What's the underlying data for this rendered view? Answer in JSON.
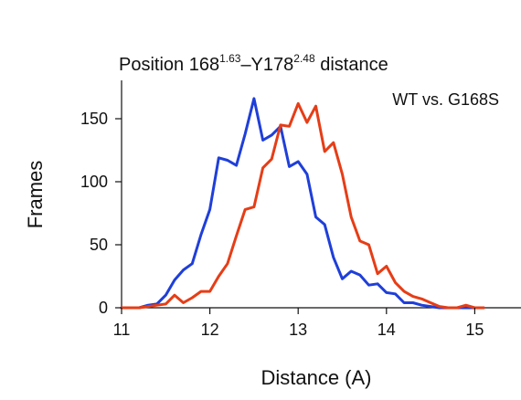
{
  "chart_data": {
    "type": "line",
    "title": {
      "part1": "Position 168",
      "sup1": "1.63",
      "part2": "–Y178",
      "sup2": "2.48",
      "part3": " distance"
    },
    "annotation": "WT vs. G168S",
    "xlabel": "Distance (A)",
    "ylabel": "Frames",
    "xlim": [
      11,
      15.5
    ],
    "ylim": [
      0,
      175
    ],
    "xticks": [
      11,
      12,
      13,
      14,
      15
    ],
    "yticks": [
      0,
      50,
      100,
      150
    ],
    "grid": false,
    "legend": "none",
    "series": [
      {
        "color": "#1f3fd9",
        "x": [
          11.0,
          11.1,
          11.2,
          11.3,
          11.4,
          11.5,
          11.6,
          11.7,
          11.8,
          11.9,
          12.0,
          12.1,
          12.2,
          12.3,
          12.4,
          12.5,
          12.6,
          12.7,
          12.8,
          12.9,
          13.0,
          13.1,
          13.2,
          13.3,
          13.4,
          13.5,
          13.6,
          13.7,
          13.8,
          13.9,
          14.0,
          14.1,
          14.2,
          14.3,
          14.4,
          14.5,
          14.6,
          14.7,
          14.8,
          14.9,
          15.0,
          15.1
        ],
        "y": [
          0,
          0,
          0,
          2,
          3,
          10,
          22,
          30,
          35,
          58,
          78,
          119,
          117,
          113,
          138,
          166,
          133,
          137,
          144,
          112,
          116,
          106,
          72,
          66,
          40,
          23,
          29,
          26,
          18,
          19,
          12,
          11,
          4,
          4,
          2,
          1,
          0,
          0,
          0,
          0,
          0,
          0
        ]
      },
      {
        "color": "#e63d16",
        "x": [
          11.0,
          11.1,
          11.2,
          11.3,
          11.4,
          11.5,
          11.6,
          11.7,
          11.8,
          11.9,
          12.0,
          12.1,
          12.2,
          12.3,
          12.4,
          12.5,
          12.6,
          12.7,
          12.8,
          12.9,
          13.0,
          13.1,
          13.2,
          13.3,
          13.4,
          13.5,
          13.6,
          13.7,
          13.8,
          13.9,
          14.0,
          14.1,
          14.2,
          14.3,
          14.4,
          14.5,
          14.6,
          14.7,
          14.8,
          14.9,
          15.0,
          15.1
        ],
        "y": [
          0,
          0,
          0,
          1,
          2,
          3,
          10,
          4,
          8,
          13,
          13,
          25,
          35,
          57,
          78,
          80,
          111,
          118,
          145,
          144,
          162,
          147,
          160,
          124,
          131,
          106,
          72,
          53,
          50,
          27,
          33,
          20,
          13,
          9,
          7,
          4,
          1,
          0,
          0,
          2,
          0,
          0
        ]
      }
    ]
  }
}
